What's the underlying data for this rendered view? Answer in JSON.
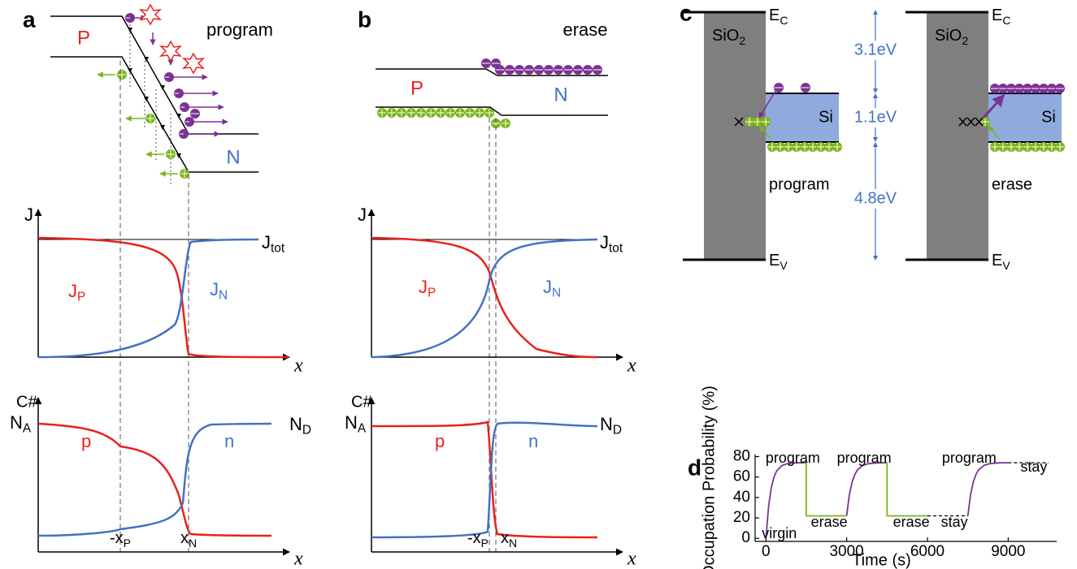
{
  "panel_a": {
    "label": "a",
    "title": "program",
    "p_region": "P",
    "n_region": "N",
    "current_axis": "J",
    "jp": {
      "main": "J",
      "sub": "P"
    },
    "jn": {
      "main": "J",
      "sub": "N"
    },
    "jtot": {
      "main": "J",
      "sub": "tot"
    },
    "x_axis_1": "x",
    "carrier_axis": "C#",
    "na": {
      "main": "N",
      "sub": "A"
    },
    "nd": {
      "main": "N",
      "sub": "D"
    },
    "p_label": "p",
    "n_label": "n",
    "x_axis_2": "x",
    "neg_xp": {
      "main": "-x",
      "sub": "P"
    },
    "xn": {
      "main": "x",
      "sub": "N"
    }
  },
  "panel_b": {
    "label": "b",
    "title": "erase",
    "p_region": "P",
    "n_region": "N",
    "current_axis": "J",
    "jp": {
      "main": "J",
      "sub": "P"
    },
    "jn": {
      "main": "J",
      "sub": "N"
    },
    "jtot": {
      "main": "J",
      "sub": "tot"
    },
    "x_axis_1": "x",
    "carrier_axis": "C#",
    "na": {
      "main": "N",
      "sub": "A"
    },
    "nd": {
      "main": "N",
      "sub": "D"
    },
    "p_label": "p",
    "n_label": "n",
    "x_axis_2": "x",
    "neg_xp": {
      "main": "-x",
      "sub": "P"
    },
    "xn": {
      "main": "x",
      "sub": "N"
    }
  },
  "panel_c": {
    "label": "c",
    "left": {
      "oxide": {
        "main": "SiO",
        "sub": "2"
      },
      "ec": {
        "main": "E",
        "sub": "C"
      },
      "ev": {
        "main": "E",
        "sub": "V"
      },
      "si": "Si",
      "mode": "program"
    },
    "gaps": [
      "3.1eV",
      "1.1eV",
      "4.8eV"
    ],
    "right": {
      "oxide": {
        "main": "SiO",
        "sub": "2"
      },
      "ec": {
        "main": "E",
        "sub": "C"
      },
      "ev": {
        "main": "E",
        "sub": "V"
      },
      "si": "Si",
      "mode": "erase"
    }
  },
  "chart_data": {
    "type": "line",
    "panel_label": "d",
    "x_label": "Time (s)",
    "y_label": "Occupation Probability (%)",
    "xlim": [
      -400,
      10800
    ],
    "xticks": [
      0,
      3000,
      6000,
      9000
    ],
    "ylim": [
      -3,
      82
    ],
    "yticks": [
      0,
      20,
      40,
      60,
      80
    ],
    "series": [
      {
        "color": "#7b3294",
        "dash": false,
        "x": [
          0,
          100,
          200,
          300,
          400,
          600,
          800,
          1000,
          1200,
          1500,
          null,
          3000,
          3100,
          3200,
          3300,
          3400,
          3600,
          3800,
          4000,
          4200,
          4500,
          null,
          7500,
          7600,
          7700,
          7800,
          7900,
          8100,
          8300,
          8500,
          8700,
          9000
        ],
        "values": [
          0,
          31.5,
          49.6,
          60,
          66,
          71.3,
          73.1,
          73.7,
          73.9,
          74,
          null,
          22,
          42.4,
          54.9,
          62.4,
          67,
          71.4,
          73,
          73.6,
          73.9,
          74,
          null,
          22,
          42.4,
          54.9,
          62.4,
          67,
          71.4,
          73,
          73.6,
          73.9,
          74
        ]
      },
      {
        "color": "#7cb518",
        "dash": false,
        "x": [
          1500,
          1500,
          3000,
          null,
          4500,
          4500,
          6000
        ],
        "values": [
          74,
          22,
          22,
          null,
          74,
          22,
          22
        ]
      },
      {
        "color": "#000000",
        "dash": true,
        "x": [
          6000,
          7500,
          null,
          9000,
          10500
        ],
        "values": [
          22,
          22,
          null,
          74,
          74
        ]
      }
    ],
    "annotations": [
      {
        "text": "program",
        "x": 1000,
        "y": 78
      },
      {
        "text": "erase",
        "x": 2350,
        "y": 15
      },
      {
        "text": "program",
        "x": 3650,
        "y": 78
      },
      {
        "text": "erase",
        "x": 5400,
        "y": 15
      },
      {
        "text": "stay",
        "x": 7000,
        "y": 15
      },
      {
        "text": "program",
        "x": 7550,
        "y": 78
      },
      {
        "text": "stay",
        "x": 9950,
        "y": 69
      },
      {
        "text": "virgin",
        "x": 500,
        "y": 4
      }
    ]
  }
}
